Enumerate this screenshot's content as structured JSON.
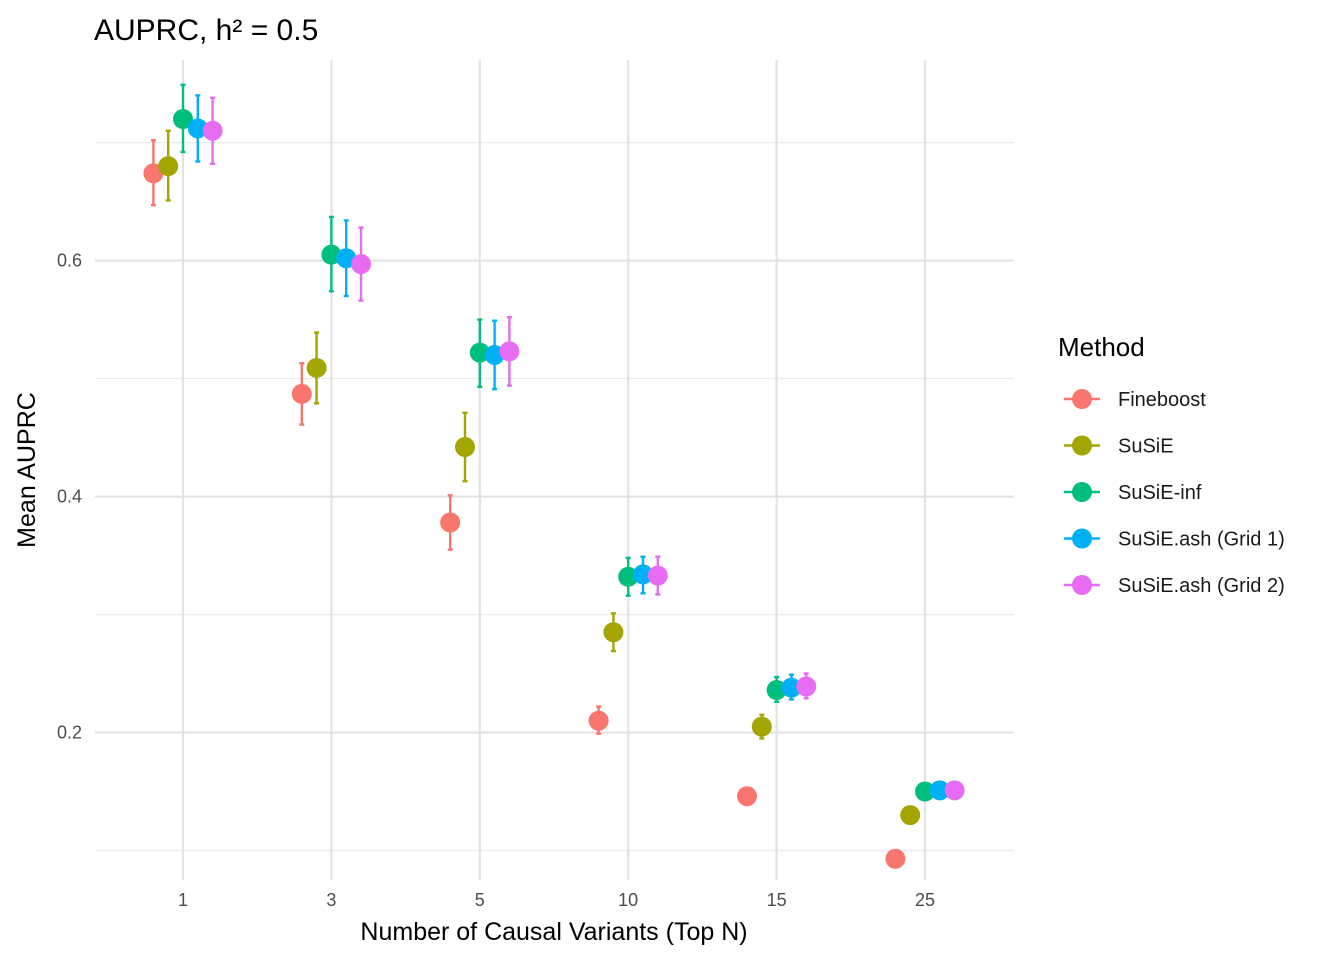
{
  "chart_data": {
    "type": "scatter",
    "title": "AUPRC, h² = 0.5",
    "xlabel": "Number of Causal Variants (Top N)",
    "ylabel": "Mean AUPRC",
    "categories": [
      "1",
      "3",
      "5",
      "10",
      "15",
      "25"
    ],
    "ylim": [
      0.075,
      0.77
    ],
    "y_ticks": [
      0.2,
      0.4,
      0.6
    ],
    "y_minor_ticks": [
      0.1,
      0.3,
      0.5,
      0.7
    ],
    "grid": true,
    "legend": {
      "title": "Method",
      "position": "right"
    },
    "error_bars": true,
    "series": [
      {
        "name": "Fineboost",
        "color": "#F8766D",
        "values": [
          0.674,
          0.487,
          0.378,
          0.21,
          0.146,
          0.093
        ],
        "lower": [
          0.647,
          0.461,
          0.355,
          0.199,
          0.14,
          0.091
        ],
        "upper": [
          0.702,
          0.513,
          0.401,
          0.222,
          0.153,
          0.096
        ]
      },
      {
        "name": "SuSiE",
        "color": "#A3A500",
        "values": [
          0.68,
          0.509,
          0.442,
          0.285,
          0.205,
          0.13
        ],
        "lower": [
          0.651,
          0.479,
          0.413,
          0.269,
          0.195,
          0.126
        ],
        "upper": [
          0.71,
          0.539,
          0.471,
          0.301,
          0.215,
          0.134
        ]
      },
      {
        "name": "SuSiE-inf",
        "color": "#00BF7D",
        "values": [
          0.72,
          0.605,
          0.522,
          0.332,
          0.236,
          0.15
        ],
        "lower": [
          0.692,
          0.574,
          0.493,
          0.316,
          0.226,
          0.147
        ],
        "upper": [
          0.749,
          0.637,
          0.55,
          0.348,
          0.247,
          0.154
        ]
      },
      {
        "name": "SuSiE.ash (Grid 1)",
        "color": "#00B0F6",
        "values": [
          0.712,
          0.602,
          0.52,
          0.334,
          0.238,
          0.151
        ],
        "lower": [
          0.684,
          0.57,
          0.491,
          0.318,
          0.228,
          0.148
        ],
        "upper": [
          0.74,
          0.634,
          0.549,
          0.349,
          0.249,
          0.155
        ]
      },
      {
        "name": "SuSiE.ash (Grid 2)",
        "color": "#E76BF3",
        "values": [
          0.71,
          0.597,
          0.523,
          0.333,
          0.239,
          0.151
        ],
        "lower": [
          0.682,
          0.566,
          0.494,
          0.317,
          0.229,
          0.148
        ],
        "upper": [
          0.738,
          0.628,
          0.552,
          0.349,
          0.25,
          0.155
        ]
      }
    ]
  }
}
